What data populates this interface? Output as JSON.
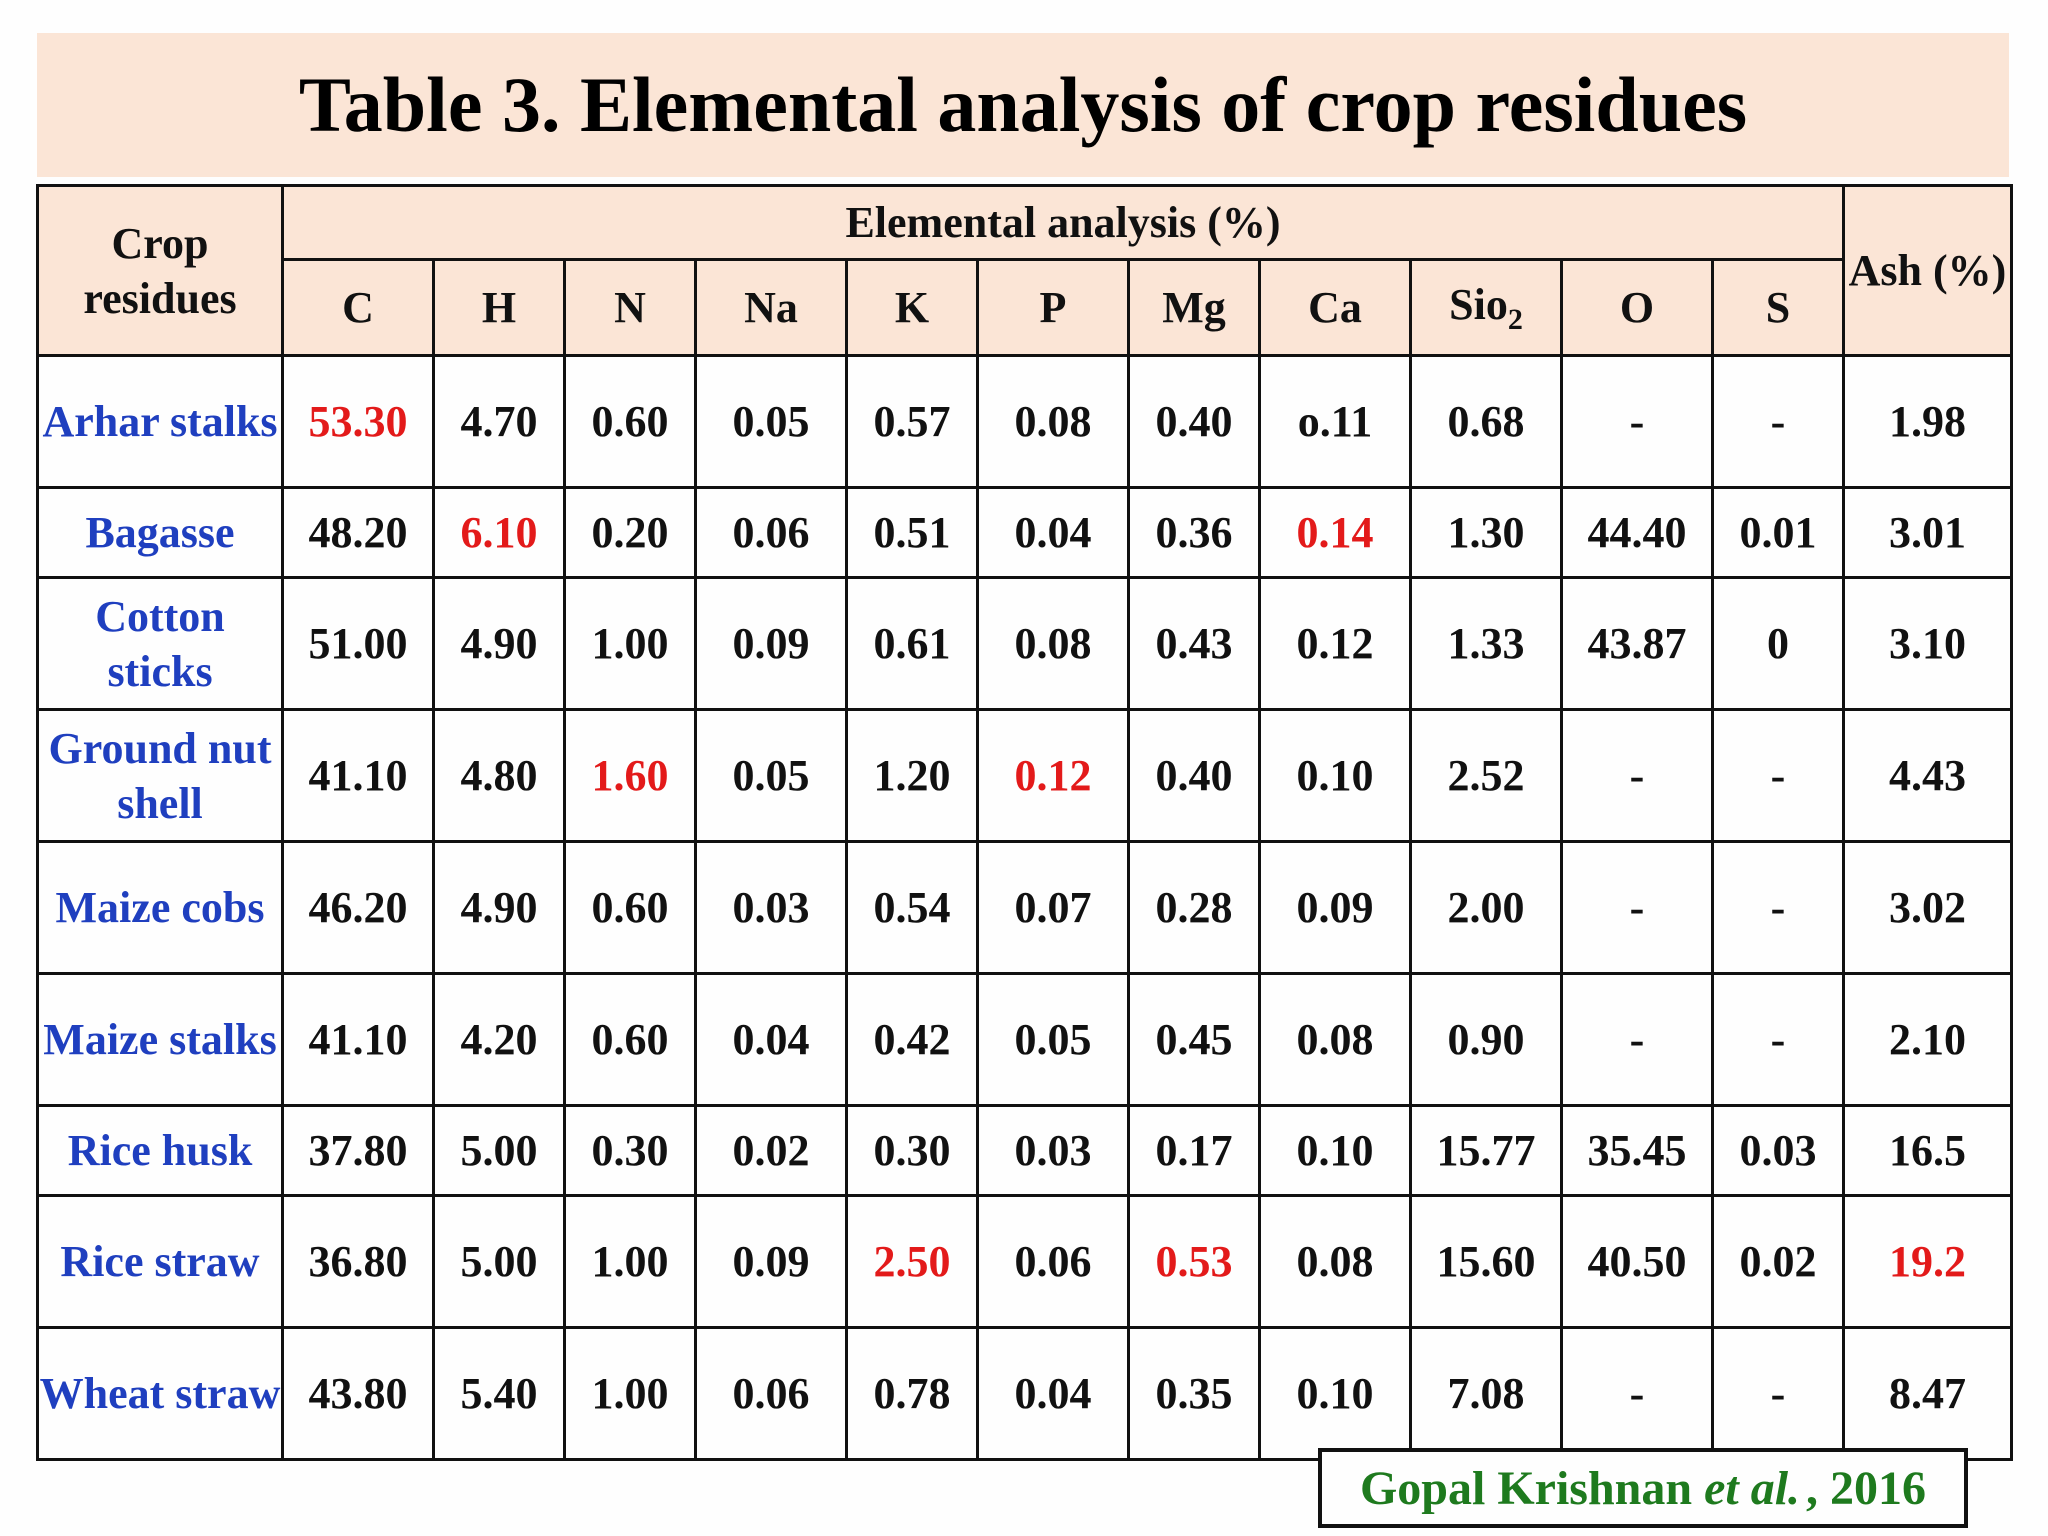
{
  "title": "Table 3. Elemental analysis of crop residues",
  "header": {
    "crop_col": "Crop residues",
    "group_label": "Elemental analysis (%)",
    "ash_col": "Ash (%)",
    "elements": [
      "C",
      "H",
      "N",
      "Na",
      "K",
      "P",
      "Mg",
      "Ca",
      "Sio2",
      "O",
      "S"
    ]
  },
  "rows": [
    {
      "name": "Arhar stalks",
      "values": [
        "53.30",
        "4.70",
        "0.60",
        "0.05",
        "0.57",
        "0.08",
        "0.40",
        "o.11",
        "0.68",
        "-",
        "-"
      ],
      "ash": "1.98",
      "highlight": [
        0
      ]
    },
    {
      "name": "Bagasse",
      "values": [
        "48.20",
        "6.10",
        "0.20",
        "0.06",
        "0.51",
        "0.04",
        "0.36",
        "0.14",
        "1.30",
        "44.40",
        "0.01"
      ],
      "ash": "3.01",
      "highlight": [
        1,
        7
      ]
    },
    {
      "name": "Cotton sticks",
      "values": [
        "51.00",
        "4.90",
        "1.00",
        "0.09",
        "0.61",
        "0.08",
        "0.43",
        "0.12",
        "1.33",
        "43.87",
        "0"
      ],
      "ash": "3.10",
      "highlight": []
    },
    {
      "name": "Ground nut shell",
      "values": [
        "41.10",
        "4.80",
        "1.60",
        "0.05",
        "1.20",
        "0.12",
        "0.40",
        "0.10",
        "2.52",
        "-",
        "-"
      ],
      "ash": "4.43",
      "highlight": [
        2,
        5
      ]
    },
    {
      "name": "Maize cobs",
      "values": [
        "46.20",
        "4.90",
        "0.60",
        "0.03",
        "0.54",
        "0.07",
        "0.28",
        "0.09",
        "2.00",
        "-",
        "-"
      ],
      "ash": "3.02",
      "highlight": []
    },
    {
      "name": "Maize stalks",
      "values": [
        "41.10",
        "4.20",
        "0.60",
        "0.04",
        "0.42",
        "0.05",
        "0.45",
        "0.08",
        "0.90",
        "-",
        "-"
      ],
      "ash": "2.10",
      "highlight": []
    },
    {
      "name": "Rice husk",
      "values": [
        "37.80",
        "5.00",
        "0.30",
        "0.02",
        "0.30",
        "0.03",
        "0.17",
        "0.10",
        "15.77",
        "35.45",
        "0.03"
      ],
      "ash": "16.5",
      "highlight": []
    },
    {
      "name": "Rice straw",
      "values": [
        "36.80",
        "5.00",
        "1.00",
        "0.09",
        "2.50",
        "0.06",
        "0.53",
        "0.08",
        "15.60",
        "40.50",
        "0.02"
      ],
      "ash": "19.2",
      "highlight": [
        4,
        6,
        "ash"
      ]
    },
    {
      "name": "Wheat straw",
      "values": [
        "43.80",
        "5.40",
        "1.00",
        "0.06",
        "0.78",
        "0.04",
        "0.35",
        "0.10",
        "7.08",
        "-",
        "-"
      ],
      "ash": "8.47",
      "highlight": []
    }
  ],
  "citation": {
    "author": "Gopal Krishnan",
    "etal": "et al.",
    "year": ", 2016"
  },
  "colors": {
    "header_bg": "#fbe5d6",
    "name_text": "#1f3fbf",
    "highlight_text": "#e31a1a",
    "citation_text": "#1e7a1e"
  }
}
